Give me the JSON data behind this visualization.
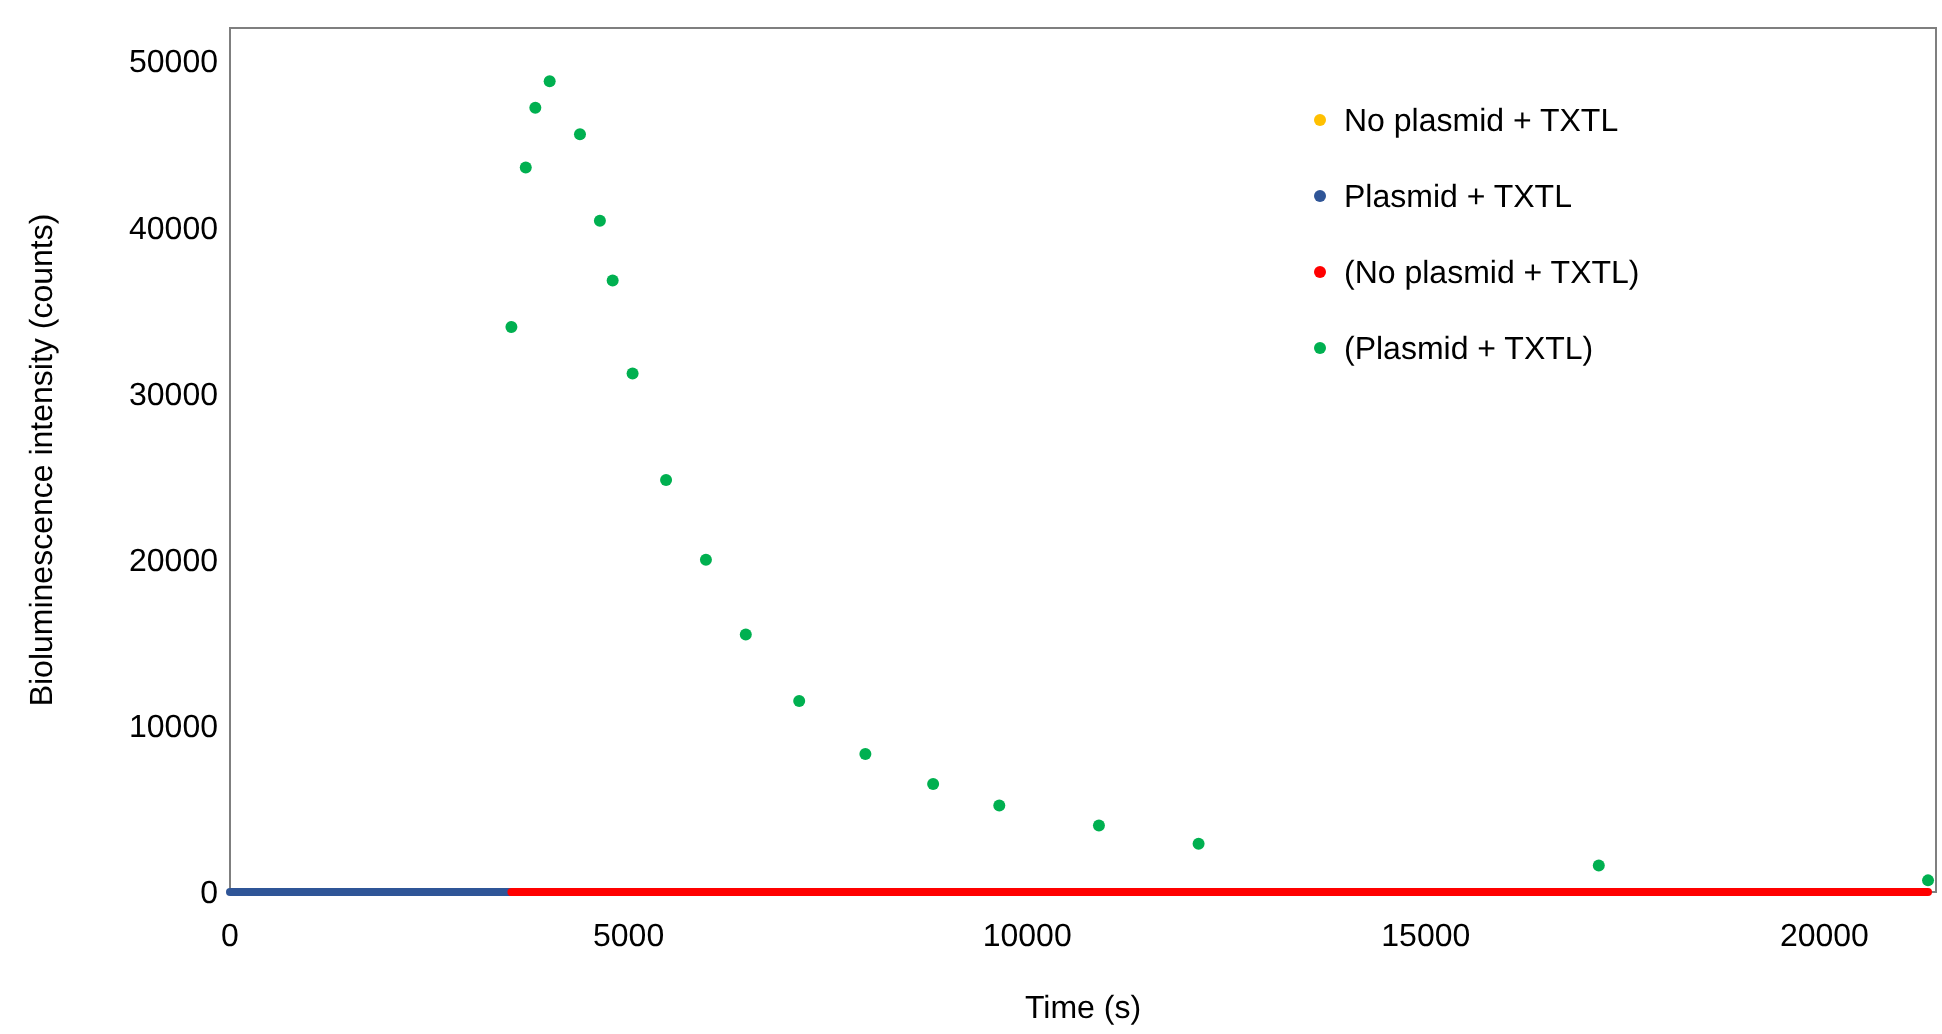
{
  "chart_data": {
    "type": "scatter",
    "xlabel": "Time (s)",
    "ylabel": "Bioluminescence intensity (counts)",
    "xlim": [
      0,
      21400
    ],
    "xticks": [
      0,
      5000,
      10000,
      15000,
      20000
    ],
    "ylim": [
      0,
      52000
    ],
    "yticks": [
      0,
      10000,
      20000,
      30000,
      40000,
      50000
    ],
    "grid": false,
    "legend": "top right",
    "marker": "circle",
    "series": [
      {
        "name": "No plasmid + TXTL",
        "color": "#ffc000",
        "values": [
          null
        ]
      },
      {
        "name": "Plasmid + TXTL",
        "color": "#2f5597",
        "type": "line",
        "marker": "none",
        "x": [
          0,
          1000,
          2000,
          3000,
          3530
        ],
        "values": [
          0,
          0,
          0,
          0,
          0
        ]
      },
      {
        "name": "(No plasmid + TXTL)",
        "color": "#ff0000",
        "type": "line",
        "marker": "none",
        "x": [
          3530,
          6000,
          9000,
          12000,
          15000,
          18000,
          21300
        ],
        "values": [
          0,
          0,
          0,
          0,
          0,
          0,
          0
        ]
      },
      {
        "name": "(Plasmid + TXTL)",
        "color": "#00b050",
        "x": [
          3530,
          3710,
          3830,
          4010,
          4390,
          4640,
          4800,
          5050,
          5470,
          5970,
          6470,
          7140,
          7970,
          8820,
          9650,
          10900,
          12150,
          17170,
          21300
        ],
        "values": [
          34000,
          43600,
          47200,
          48800,
          45600,
          40400,
          36800,
          31200,
          24800,
          20000,
          15500,
          11500,
          8300,
          6500,
          5200,
          4000,
          2900,
          1600,
          700
        ]
      }
    ]
  }
}
